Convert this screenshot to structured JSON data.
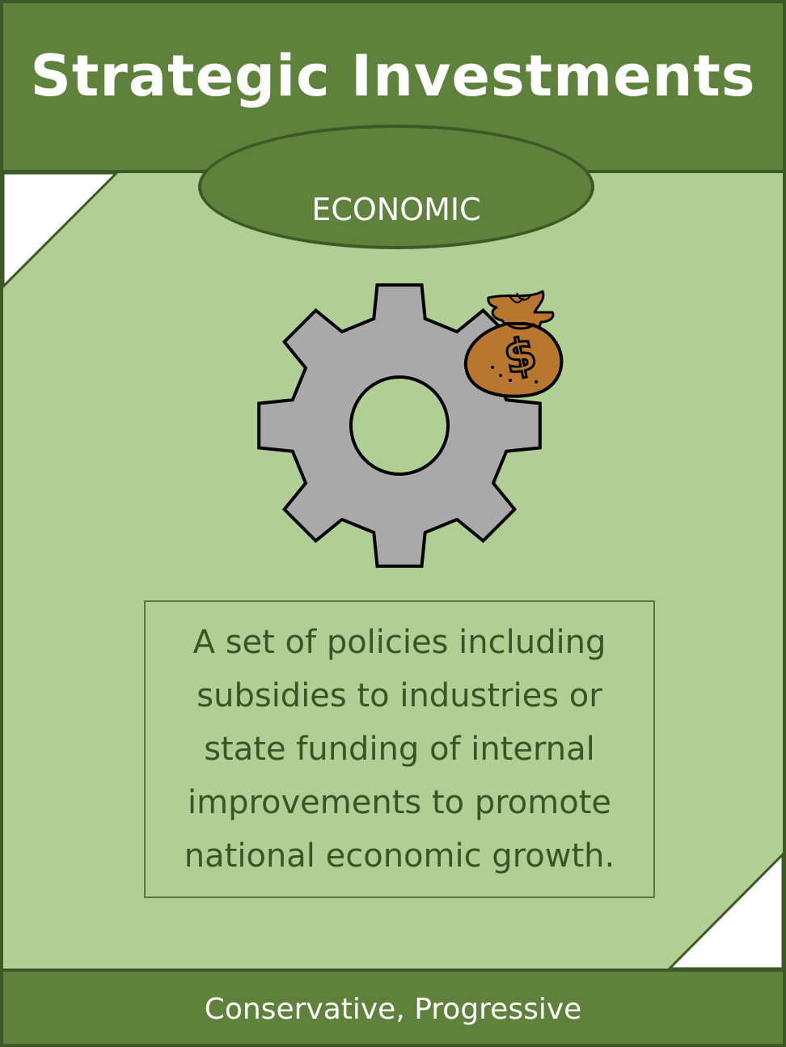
{
  "card": {
    "title": "Strategic Investments",
    "category": "ECONOMIC",
    "description": "A set of policies including subsidies to industries or state funding of internal improvements to promote national economic growth.",
    "alignments": "Conservative, Progressive"
  },
  "icons": {
    "main": "gear-icon",
    "accent": "money-bag-icon"
  },
  "colors": {
    "header": "#5e813c",
    "background": "#b0cf95",
    "border": "#3d5a26",
    "text_dark": "#3b5326",
    "gear": "#a9a9a9",
    "money_bag": "#b8762f"
  }
}
